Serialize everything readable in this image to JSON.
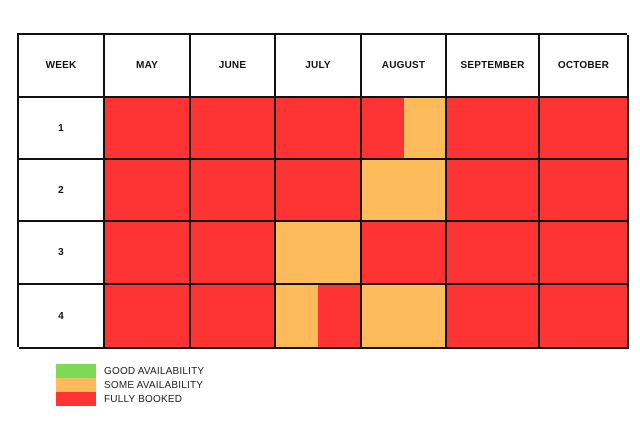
{
  "table": {
    "week_header": "WEEK",
    "months": [
      "MAY",
      "JUNE",
      "JULY",
      "AUGUST",
      "SEPTEMBER",
      "OCTOBER"
    ],
    "weeks": [
      "1",
      "2",
      "3",
      "4"
    ],
    "availability": [
      [
        "full",
        "full",
        "full",
        [
          "full",
          "some"
        ],
        "full",
        "full"
      ],
      [
        "full",
        "full",
        "full",
        "some",
        "full",
        "full"
      ],
      [
        "full",
        "full",
        "some",
        "full",
        "full",
        "full"
      ],
      [
        "full",
        "full",
        [
          "some",
          "full"
        ],
        "some",
        "full",
        "full"
      ]
    ]
  },
  "colors": {
    "good": "#7ed957",
    "some": "#fdbb5c",
    "full": "#fe3333"
  },
  "legend": [
    {
      "status": "good",
      "label": "GOOD AVAILABILITY"
    },
    {
      "status": "some",
      "label": "SOME AVAILABILITY"
    },
    {
      "status": "full",
      "label": "FULLY BOOKED"
    }
  ]
}
